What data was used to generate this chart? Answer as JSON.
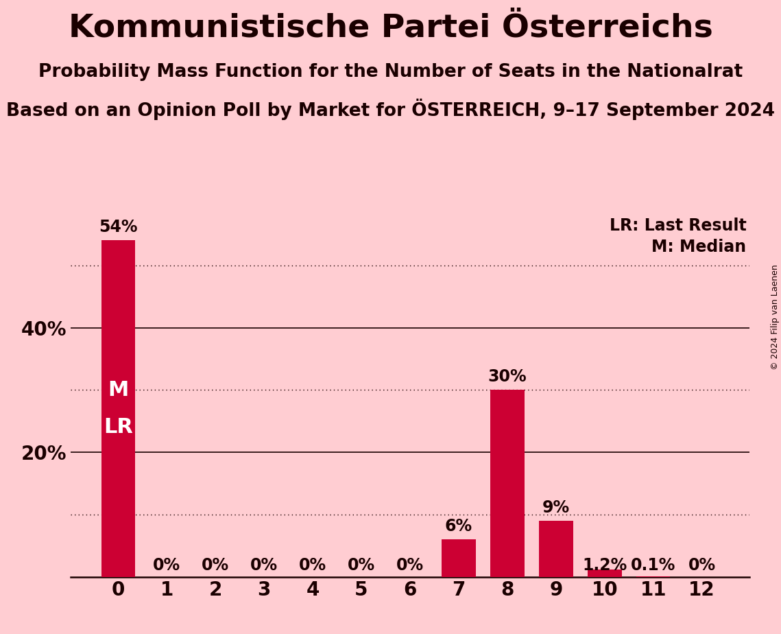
{
  "title": "Kommunistische Partei Österreichs",
  "subtitle1": "Probability Mass Function for the Number of Seats in the Nationalrat",
  "subtitle2": "Based on an Opinion Poll by Market for ÖSTERREICH, 9–17 September 2024",
  "copyright": "© 2024 Filip van Laenen",
  "categories": [
    0,
    1,
    2,
    3,
    4,
    5,
    6,
    7,
    8,
    9,
    10,
    11,
    12
  ],
  "values": [
    54.0,
    0.0,
    0.0,
    0.0,
    0.0,
    0.0,
    0.0,
    6.0,
    30.0,
    9.0,
    1.2,
    0.1,
    0.0
  ],
  "bar_color": "#CC0033",
  "background_color": "#FFCDD2",
  "text_color": "#1a0000",
  "white_color": "#ffffff",
  "bar_labels": [
    "54%",
    "0%",
    "0%",
    "0%",
    "0%",
    "0%",
    "0%",
    "6%",
    "30%",
    "9%",
    "1.2%",
    "0.1%",
    "0%"
  ],
  "ylim": [
    0,
    58
  ],
  "yticks": [
    20,
    40
  ],
  "ytick_labels": [
    "20%",
    "40%"
  ],
  "dotted_lines": [
    10,
    30,
    50
  ],
  "solid_lines": [
    20,
    40
  ],
  "legend_lr": "LR: Last Result",
  "legend_m": "M: Median",
  "title_fontsize": 34,
  "subtitle_fontsize": 19,
  "bar_label_fontsize": 17,
  "axis_label_fontsize": 20,
  "ml_label_fontsize": 22,
  "legend_fontsize": 17,
  "copyright_fontsize": 9
}
